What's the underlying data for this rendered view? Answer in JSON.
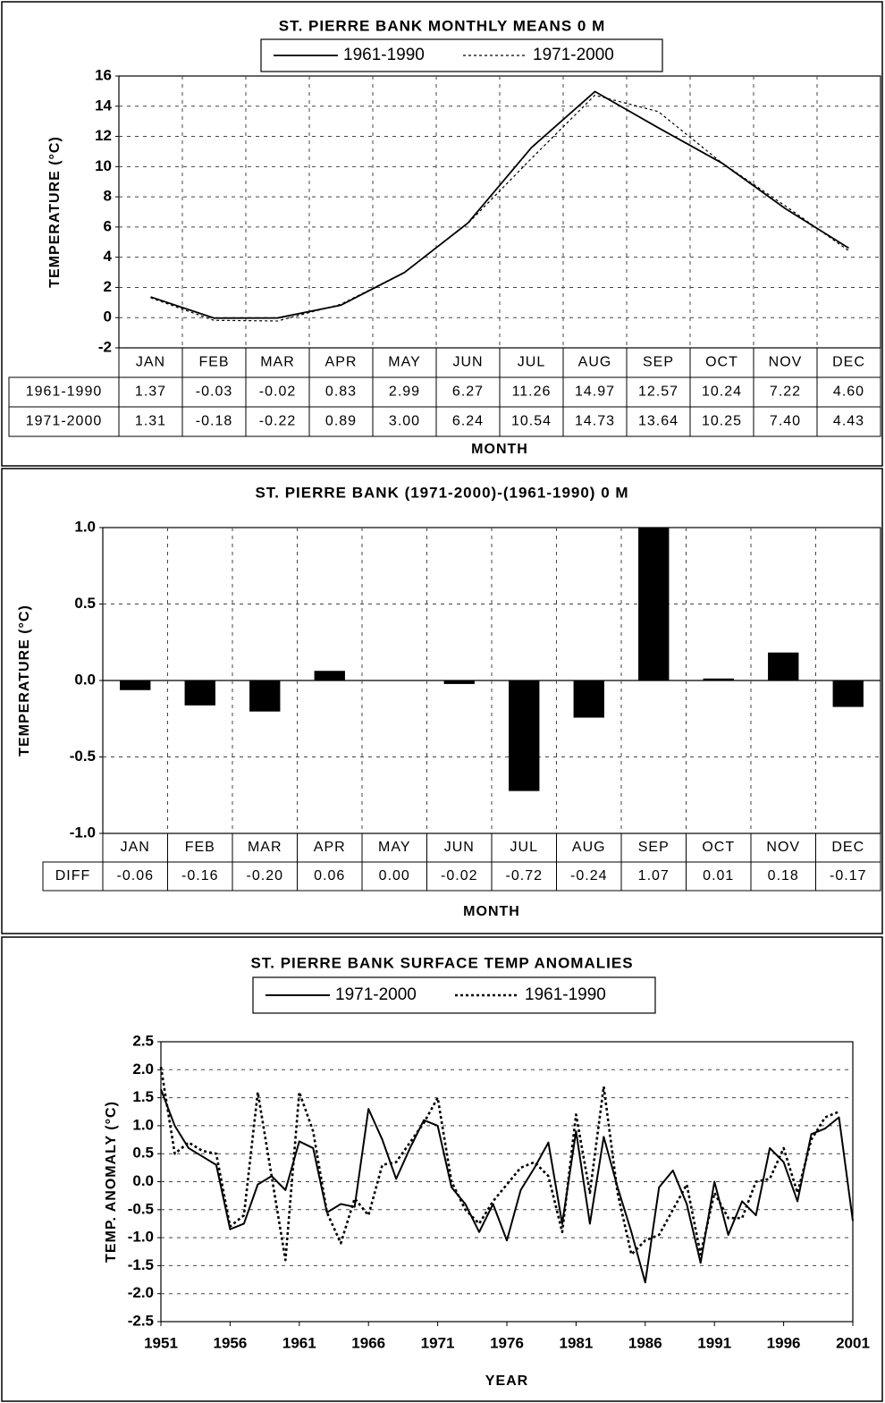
{
  "chart_data": [
    {
      "type": "line",
      "title": "ST. PIERRE BANK MONTHLY MEANS 0 M",
      "y_label": "TEMPERATURE (°C)",
      "x_label": "MONTH",
      "categories": [
        "JAN",
        "FEB",
        "MAR",
        "APR",
        "MAY",
        "JUN",
        "JUL",
        "AUG",
        "SEP",
        "OCT",
        "NOV",
        "DEC"
      ],
      "series": [
        {
          "name": "1961-1990",
          "color": "#000000",
          "dash": "solid",
          "values": [
            1.37,
            -0.03,
            -0.02,
            0.83,
            2.99,
            6.27,
            11.26,
            14.97,
            12.57,
            10.24,
            7.22,
            4.6
          ],
          "value_labels": [
            "1.37",
            "-0.03",
            "-0.02",
            "0.83",
            "2.99",
            "6.27",
            "11.26",
            "14.97",
            "12.57",
            "10.24",
            "7.22",
            "4.60"
          ]
        },
        {
          "name": "1971-2000",
          "color": "#000000",
          "dash": "dotted",
          "values": [
            1.31,
            -0.18,
            -0.22,
            0.89,
            3,
            6.24,
            10.54,
            14.73,
            13.64,
            10.25,
            7.4,
            4.43
          ],
          "value_labels": [
            "1.31",
            "-0.18",
            "-0.22",
            "0.89",
            "3.00",
            "6.24",
            "10.54",
            "14.73",
            "13.64",
            "10.25",
            "7.40",
            "4.43"
          ]
        }
      ],
      "ylim": [
        -2,
        16
      ],
      "yticks": [
        -2,
        0,
        2,
        4,
        6,
        8,
        10,
        12,
        14,
        16
      ],
      "grid": true,
      "legend": "top",
      "table": true
    },
    {
      "type": "bar",
      "title": "ST. PIERRE BANK (1971-2000)-(1961-1990) 0 M",
      "y_label": "TEMPERATURE (°C)",
      "x_label": "MONTH",
      "categories": [
        "JAN",
        "FEB",
        "MAR",
        "APR",
        "MAY",
        "JUN",
        "JUL",
        "AUG",
        "SEP",
        "OCT",
        "NOV",
        "DEC"
      ],
      "series": [
        {
          "name": "DIFF",
          "color": "#000000",
          "values": [
            -0.06,
            -0.16,
            -0.2,
            0.06,
            0,
            -0.02,
            -0.72,
            -0.24,
            1.07,
            0.01,
            0.18,
            -0.17
          ],
          "value_labels": [
            "-0.06",
            "-0.16",
            "-0.20",
            "0.06",
            "0.00",
            "-0.02",
            "-0.72",
            "-0.24",
            "1.07",
            "0.01",
            "0.18",
            "-0.17"
          ]
        }
      ],
      "ylim": [
        -1,
        1
      ],
      "yticks": [
        {
          "value": -1,
          "label": "-1.0"
        },
        -0.5,
        {
          "value": 0,
          "label": "0.0"
        },
        0.5,
        {
          "value": 1,
          "label": "1.0"
        }
      ],
      "grid": true,
      "table": true
    },
    {
      "type": "line",
      "title": "ST. PIERRE BANK SURFACE TEMP ANOMALIES",
      "y_label": "TEMP. ANOMALY (°C)",
      "x_label": "YEAR",
      "x": [
        1951,
        1952,
        1953,
        1954,
        1955,
        1956,
        1957,
        1958,
        1959,
        1960,
        1961,
        1962,
        1963,
        1964,
        1965,
        1966,
        1967,
        1968,
        1969,
        1970,
        1971,
        1972,
        1973,
        1974,
        1975,
        1976,
        1977,
        1978,
        1979,
        1980,
        1981,
        1982,
        1983,
        1984,
        1985,
        1986,
        1987,
        1988,
        1989,
        1990,
        1991,
        1992,
        1993,
        1994,
        1995,
        1996,
        1997,
        1998,
        1999,
        2000,
        2001
      ],
      "series": [
        {
          "name": "1971-2000",
          "color": "#000000",
          "dash": "solid",
          "values": [
            1.65,
            1.0,
            0.6,
            0.45,
            0.3,
            -0.85,
            -0.75,
            -0.05,
            0.1,
            -0.15,
            0.72,
            0.6,
            -0.55,
            -0.4,
            -0.45,
            1.3,
            0.75,
            0.05,
            0.6,
            1.1,
            1.0,
            -0.1,
            -0.4,
            -0.9,
            -0.4,
            -1.05,
            -0.15,
            0.25,
            0.7,
            -0.75,
            0.9,
            -0.75,
            0.8,
            -0.1,
            -0.9,
            -1.8,
            -0.1,
            0.2,
            -0.4,
            -1.45,
            0.0,
            -0.95,
            -0.35,
            -0.6,
            0.6,
            0.35,
            -0.35,
            0.85,
            0.95,
            1.15,
            -0.7
          ]
        },
        {
          "name": "1961-1990",
          "color": "#000000",
          "dash": "dotted",
          "values": [
            2.05,
            0.5,
            0.7,
            0.55,
            0.5,
            -0.8,
            -0.6,
            1.6,
            0.1,
            -1.4,
            1.6,
            0.9,
            -0.55,
            -1.1,
            -0.3,
            -0.6,
            0.3,
            0.35,
            0.7,
            1.05,
            1.5,
            0.0,
            -0.5,
            -0.75,
            -0.35,
            -0.05,
            0.25,
            0.35,
            0.1,
            -0.9,
            1.2,
            -0.2,
            1.7,
            -0.2,
            -1.3,
            -1.05,
            -0.95,
            -0.5,
            -0.05,
            -1.3,
            -0.2,
            -0.65,
            -0.65,
            0.0,
            0.05,
            0.6,
            -0.2,
            0.75,
            1.15,
            1.25,
            null
          ]
        }
      ],
      "xlim": [
        1951,
        2001
      ],
      "xticks": [
        1951,
        1956,
        1961,
        1966,
        1971,
        1976,
        1981,
        1986,
        1991,
        1996,
        2001
      ],
      "ylim": [
        -2.5,
        2.5
      ],
      "yticks": [
        -2.5,
        {
          "value": -2,
          "label": "-2.0"
        },
        -1.5,
        {
          "value": -1,
          "label": "-1.0"
        },
        -0.5,
        {
          "value": 0,
          "label": "0.0"
        },
        0.5,
        {
          "value": 1,
          "label": "1.0"
        },
        1.5,
        {
          "value": 2,
          "label": "2.0"
        },
        2.5
      ],
      "grid": true,
      "legend": "top"
    }
  ]
}
